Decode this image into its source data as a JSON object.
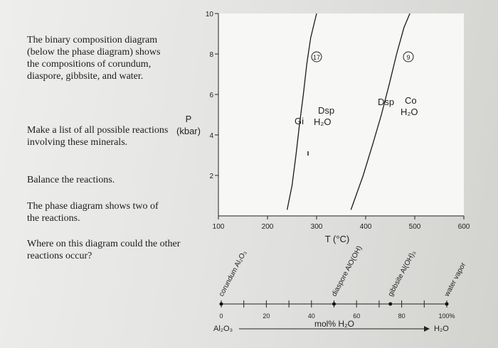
{
  "questions": {
    "q1": "The binary composition diagram (below the phase diagram) shows the compositions of corundum, diaspore, gibbsite, and water.",
    "q2": "Make a list of all possible reactions involving these minerals.",
    "q3": "Balance the reactions.",
    "q4": "The phase diagram shows two of the reactions.",
    "q5": "Where on this diagram could the other reactions occur?"
  },
  "phase_diagram": {
    "y_axis_label_line1": "P",
    "y_axis_label_line2": "(kbar)",
    "x_axis_label": "T (°C)",
    "y_ticks": [
      "2",
      "4",
      "6",
      "8",
      "10"
    ],
    "x_ticks": [
      "100",
      "200",
      "300",
      "400",
      "500",
      "600"
    ],
    "curve_17": {
      "marker": "17",
      "left_field": "Gi",
      "right_field_line1": "Dsp",
      "right_field_line2": "H₂O"
    },
    "curve_9": {
      "marker": "9",
      "left_field": "Dsp",
      "right_field_line1": "Co",
      "right_field_line2": "H₂O"
    }
  },
  "composition_diagram": {
    "x_axis_label": "mol% H₂O",
    "left_end_label": "Al₂O₃",
    "right_end_label": "H₂O",
    "ticks": [
      "0",
      "20",
      "40",
      "60",
      "80",
      "100%"
    ],
    "minerals": [
      {
        "label": "corundum Al₂O₃",
        "mol_pct_h2o": 0
      },
      {
        "label": "diaspore AlO(OH)",
        "mol_pct_h2o": 50
      },
      {
        "label": "gibbsite Al(OH)₃",
        "mol_pct_h2o": 75
      },
      {
        "label": "water vapor",
        "mol_pct_h2o": 100
      }
    ]
  },
  "chart_data": {
    "type": "line",
    "xlabel": "T (°C)",
    "ylabel": "P (kbar)",
    "xlim": [
      100,
      600
    ],
    "ylim": [
      0,
      10
    ],
    "series": [
      {
        "name": "17",
        "x": [
          240,
          250,
          258,
          265,
          273,
          280,
          288,
          300
        ],
        "y": [
          0.3,
          1.5,
          3.0,
          4.5,
          6.0,
          7.5,
          8.8,
          10.0
        ]
      },
      {
        "name": "9",
        "x": [
          370,
          395,
          415,
          432,
          448,
          463,
          478,
          490
        ],
        "y": [
          0.3,
          2.0,
          3.6,
          5.0,
          6.5,
          8.0,
          9.3,
          10.0
        ]
      }
    ]
  },
  "colors": {
    "ink": "#1e1e1e",
    "page": "#e6e6e4"
  }
}
